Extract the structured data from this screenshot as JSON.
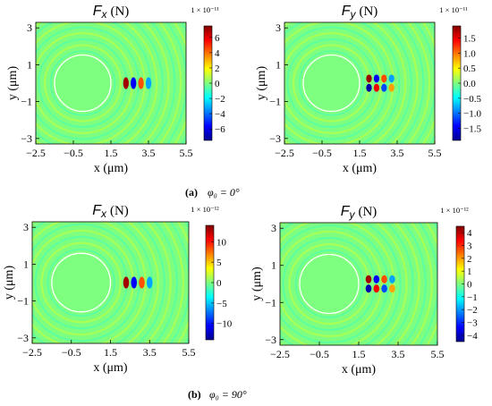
{
  "figure": {
    "row_labels": [
      {
        "tag": "(a)",
        "text": "φ₀ = 0°"
      },
      {
        "tag": "(b)",
        "text": "φ₀ = 90°"
      }
    ]
  },
  "chart_data": [
    {
      "type": "heatmap",
      "panel": "a-left",
      "title": "F_x",
      "title_symbol": "F",
      "title_subscript": "x",
      "title_unit": "(N)",
      "xlabel": "x (μm)",
      "ylabel": "y (μm)",
      "xlim": [
        -2.5,
        5.5
      ],
      "ylim": [
        -3.3,
        3.3
      ],
      "xticks": [
        "-2.5",
        "-0.5",
        "1.5",
        "3.5",
        "5.5"
      ],
      "yticks": [
        "3",
        "1",
        "-1",
        "-3"
      ],
      "scale_label": "1 × 10⁻¹¹",
      "clim": [
        -7.5,
        7.5
      ],
      "colorbar_ticks": [
        "6",
        "4",
        "2",
        "0",
        "-2",
        "-4",
        "-6"
      ],
      "sphere": {
        "center": [
          0,
          0
        ],
        "radius": 1.5
      },
      "hotspot": {
        "xs": [
          2.3,
          2.7,
          3.1,
          3.5
        ],
        "y_rows": [
          0
        ],
        "peak": 7
      }
    },
    {
      "type": "heatmap",
      "panel": "a-right",
      "title": "F_y",
      "title_symbol": "F",
      "title_subscript": "y",
      "title_unit": "(N)",
      "xlabel": "x (μm)",
      "ylabel": "y (μm)",
      "xlim": [
        -2.5,
        5.5
      ],
      "ylim": [
        -3.3,
        3.3
      ],
      "xticks": [
        "-2.5",
        "-0.5",
        "1.5",
        "3.5",
        "5.5"
      ],
      "yticks": [
        "3",
        "1",
        "-1",
        "-3"
      ],
      "scale_label": "1 × 10⁻¹¹",
      "clim": [
        -1.9,
        1.9
      ],
      "colorbar_ticks": [
        "1.5",
        "1.0",
        "0.5",
        "0.0",
        "-0.5",
        "-1.0",
        "-1.5"
      ],
      "sphere": {
        "center": [
          0,
          0
        ],
        "radius": 1.5
      },
      "hotspot": {
        "xs": [
          2.0,
          2.4,
          2.8,
          3.2
        ],
        "y_rows": [
          0.25,
          -0.25
        ],
        "peak": 1.8
      }
    },
    {
      "type": "heatmap",
      "panel": "b-left",
      "title": "F_x",
      "title_symbol": "F",
      "title_subscript": "x",
      "title_unit": "(N)",
      "xlabel": "x (μm)",
      "ylabel": "y (μm)",
      "xlim": [
        -2.5,
        5.5
      ],
      "ylim": [
        -3.3,
        3.3
      ],
      "xticks": [
        "-2.5",
        "-0.5",
        "1.5",
        "3.5",
        "5.5"
      ],
      "yticks": [
        "3",
        "1",
        "-1",
        "-3"
      ],
      "scale_label": "1 × 10⁻¹²",
      "clim": [
        -14,
        14
      ],
      "colorbar_ticks": [
        "10",
        "5",
        "0",
        "-5",
        "-10"
      ],
      "sphere": {
        "center": [
          0,
          0
        ],
        "radius": 1.5
      },
      "hotspot": {
        "xs": [
          2.3,
          2.7,
          3.1,
          3.5
        ],
        "y_rows": [
          0
        ],
        "peak": 13
      }
    },
    {
      "type": "heatmap",
      "panel": "b-right",
      "title": "F_y",
      "title_symbol": "F",
      "title_subscript": "y",
      "title_unit": "(N)",
      "xlabel": "x (μm)",
      "ylabel": "y (μm)",
      "xlim": [
        -2.5,
        5.5
      ],
      "ylim": [
        -3.3,
        3.3
      ],
      "xticks": [
        "-2.5",
        "-0.5",
        "1.5",
        "3.5",
        "5.5"
      ],
      "yticks": [
        "3",
        "1",
        "-1",
        "-3"
      ],
      "scale_label": "1 × 10⁻¹²",
      "clim": [
        -4.5,
        4.5
      ],
      "colorbar_ticks": [
        "4",
        "3",
        "2",
        "1",
        "0",
        "-1",
        "-2",
        "-3",
        "-4"
      ],
      "sphere": {
        "center": [
          0,
          0
        ],
        "radius": 1.5
      },
      "hotspot": {
        "xs": [
          2.0,
          2.4,
          2.8,
          3.2
        ],
        "y_rows": [
          0.25,
          -0.25
        ],
        "peak": 4.2
      }
    }
  ]
}
